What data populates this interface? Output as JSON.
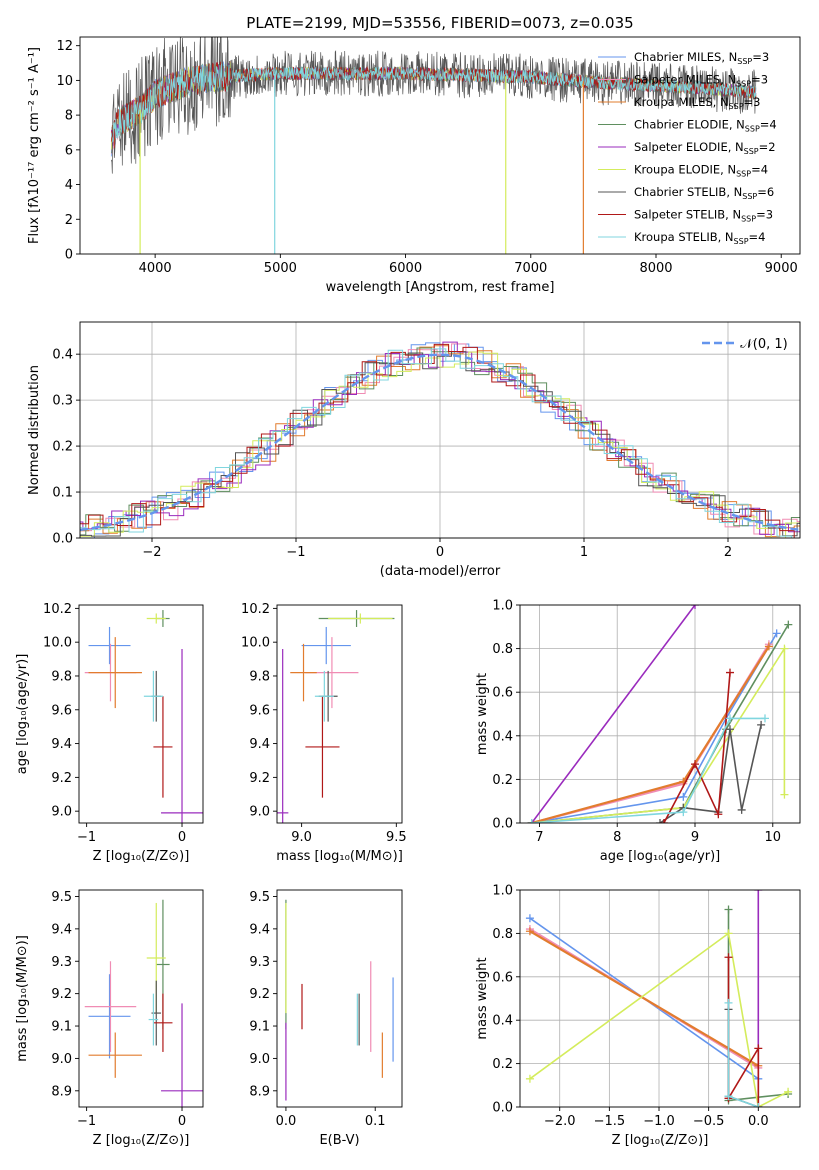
{
  "colors": {
    "c_miles": "#6495ed",
    "s_miles": "#f08cb4",
    "k_miles": "#e27c2e",
    "c_elodie": "#5f8f5f",
    "s_elodie": "#9a2bbd",
    "k_elodie": "#d4ec5c",
    "c_stelib": "#555555",
    "s_stelib": "#b01818",
    "k_stelib": "#80d6df"
  },
  "chart_data": [
    {
      "id": "spectrum",
      "type": "line",
      "title": "PLATE=2199, MJD=53556, FIBERID=0073, z=0.035",
      "xlabel": "wavelength [Angstrom, rest frame]",
      "ylabel": "Flux [fλ10⁻¹⁷ erg cm⁻² s⁻¹ A⁻¹]",
      "xlim": [
        3400,
        9150
      ],
      "ylim": [
        0,
        12.5
      ],
      "xticks": [
        4000,
        5000,
        6000,
        7000,
        8000,
        9000
      ],
      "yticks": [
        0,
        2,
        4,
        6,
        8,
        10,
        12
      ],
      "legend": "top-right",
      "series": [
        {
          "name": "Chabrier MILES, N",
          "sub": "SSP",
          "suffix": "=3",
          "color": "c_miles"
        },
        {
          "name": "Salpeter MILES, N",
          "sub": "SSP",
          "suffix": "=3",
          "color": "s_miles"
        },
        {
          "name": "Kroupa MILES, N",
          "sub": "SSP",
          "suffix": "=3",
          "color": "k_miles"
        },
        {
          "name": "Chabrier ELODIE, N",
          "sub": "SSP",
          "suffix": "=4",
          "color": "c_elodie"
        },
        {
          "name": "Salpeter ELODIE, N",
          "sub": "SSP",
          "suffix": "=2",
          "color": "s_elodie"
        },
        {
          "name": "Kroupa ELODIE, N",
          "sub": "SSP",
          "suffix": "=4",
          "color": "k_elodie"
        },
        {
          "name": "Chabrier STELIB, N",
          "sub": "SSP",
          "suffix": "=6",
          "color": "c_stelib"
        },
        {
          "name": "Salpeter STELIB, N",
          "sub": "SSP",
          "suffix": "=3",
          "color": "s_stelib"
        },
        {
          "name": "Kroupa STELIB, N",
          "sub": "SSP",
          "suffix": "=4",
          "color": "k_stelib"
        }
      ],
      "continuum": {
        "x": [
          3650,
          3700,
          3800,
          3900,
          4000,
          4100,
          4300,
          4500,
          5000,
          5500,
          6000,
          6500,
          7000,
          7500,
          8000,
          8500,
          8800
        ],
        "y": [
          6.5,
          7.5,
          8.0,
          8.4,
          9.2,
          9.5,
          10.0,
          10.2,
          10.4,
          10.4,
          10.4,
          10.3,
          10.2,
          9.9,
          9.7,
          9.5,
          9.3
        ]
      },
      "dips": [
        {
          "x": 3880,
          "y": 0,
          "color": "k_elodie"
        },
        {
          "x": 4955,
          "y": 0,
          "color": "k_stelib"
        },
        {
          "x": 6800,
          "y": 0,
          "color": "k_elodie"
        },
        {
          "x": 7420,
          "y": 0,
          "color": "k_miles"
        }
      ]
    },
    {
      "id": "residuals",
      "type": "histogram",
      "xlabel": "(data-model)/error",
      "ylabel": "Normed distribution",
      "xlim": [
        -2.5,
        2.5
      ],
      "ylim": [
        0,
        0.47
      ],
      "xticks": [
        -2,
        -1,
        0,
        1,
        2
      ],
      "yticks": [
        0.0,
        0.1,
        0.2,
        0.3,
        0.4
      ],
      "legend": "top-right",
      "legend_label": "𝒩(0, 1)",
      "gauss_color": "c_miles",
      "bin_width": 0.1
    },
    {
      "id": "age_vs_z",
      "type": "errorbar",
      "xlabel": "Z [log₁₀(Z/Z⊙)]",
      "ylabel": "age  [log₁₀(age/yr)]",
      "xlim": [
        -1.08,
        0.22
      ],
      "ylim": [
        8.93,
        10.22
      ],
      "xticks": [
        -1,
        0
      ],
      "yticks": [
        9.0,
        9.2,
        9.4,
        9.6,
        9.8,
        10.0,
        10.2
      ],
      "points": [
        {
          "x": -0.76,
          "y": 9.98,
          "xerr": 0.22,
          "yerr": 0.11,
          "color": "c_miles"
        },
        {
          "x": -0.75,
          "y": 9.82,
          "xerr": 0.27,
          "yerr": 0.17,
          "color": "s_miles"
        },
        {
          "x": -0.7,
          "y": 9.82,
          "xerr": 0.28,
          "yerr": 0.21,
          "color": "k_miles"
        },
        {
          "x": -0.2,
          "y": 10.14,
          "xerr": 0.07,
          "yerr": 0.05,
          "color": "c_elodie"
        },
        {
          "x": 0.0,
          "y": 8.99,
          "xerr": 0.22,
          "yerr": 0.97,
          "color": "s_elodie"
        },
        {
          "x": -0.27,
          "y": 10.14,
          "xerr": 0.1,
          "yerr": 0.03,
          "color": "k_elodie"
        },
        {
          "x": -0.27,
          "y": 9.68,
          "xerr": 0.05,
          "yerr": 0.15,
          "color": "c_stelib"
        },
        {
          "x": -0.2,
          "y": 9.38,
          "xerr": 0.1,
          "yerr": 0.3,
          "color": "s_stelib"
        },
        {
          "x": -0.3,
          "y": 9.68,
          "xerr": 0.1,
          "yerr": 0.15,
          "color": "k_stelib"
        }
      ]
    },
    {
      "id": "age_vs_mass",
      "type": "errorbar",
      "xlabel": "mass [log₁₀(M/M⊙)]",
      "ylabel": "",
      "xlim": [
        8.87,
        9.53
      ],
      "ylim": [
        8.93,
        10.22
      ],
      "xticks": [
        9.0,
        9.5
      ],
      "yticks": [
        9.0,
        9.2,
        9.4,
        9.6,
        9.8,
        10.0,
        10.2
      ],
      "points": [
        {
          "x": 9.13,
          "y": 9.98,
          "xerr": 0.13,
          "yerr": 0.11,
          "color": "c_miles"
        },
        {
          "x": 9.16,
          "y": 9.82,
          "xerr": 0.14,
          "yerr": 0.21,
          "color": "s_miles"
        },
        {
          "x": 9.01,
          "y": 9.82,
          "xerr": 0.07,
          "yerr": 0.17,
          "color": "k_miles"
        },
        {
          "x": 9.29,
          "y": 10.14,
          "xerr": 0.2,
          "yerr": 0.05,
          "color": "c_elodie"
        },
        {
          "x": 8.9,
          "y": 8.99,
          "xerr": 0.03,
          "yerr": 0.97,
          "color": "s_elodie"
        },
        {
          "x": 9.31,
          "y": 10.14,
          "xerr": 0.17,
          "yerr": 0.03,
          "color": "k_elodie"
        },
        {
          "x": 9.14,
          "y": 9.68,
          "xerr": 0.05,
          "yerr": 0.15,
          "color": "c_stelib"
        },
        {
          "x": 9.11,
          "y": 9.38,
          "xerr": 0.09,
          "yerr": 0.3,
          "color": "s_stelib"
        },
        {
          "x": 9.12,
          "y": 9.68,
          "xerr": 0.05,
          "yerr": 0.15,
          "color": "k_stelib"
        }
      ]
    },
    {
      "id": "weight_vs_age",
      "type": "line",
      "xlabel": "age  [log₁₀(age/yr)]",
      "ylabel": "mass weight",
      "xlim": [
        6.75,
        10.35
      ],
      "ylim": [
        0,
        1
      ],
      "xticks": [
        7,
        8,
        9,
        10
      ],
      "yticks": [
        0.0,
        0.2,
        0.4,
        0.6,
        0.8,
        1.0
      ],
      "series": [
        {
          "color": "c_miles",
          "x": [
            6.9,
            8.85,
            9.4,
            10.05
          ],
          "y": [
            0.0,
            0.12,
            0.48,
            0.87
          ]
        },
        {
          "color": "s_miles",
          "x": [
            6.9,
            8.85,
            9.95
          ],
          "y": [
            0.0,
            0.18,
            0.82
          ]
        },
        {
          "color": "k_miles",
          "x": [
            6.9,
            8.85,
            9.95
          ],
          "y": [
            0.0,
            0.19,
            0.81
          ]
        },
        {
          "color": "c_elodie",
          "x": [
            6.9,
            8.85,
            9.4,
            10.2
          ],
          "y": [
            0.0,
            0.07,
            0.43,
            0.91
          ]
        },
        {
          "color": "s_elodie",
          "x": [
            6.9,
            9.0
          ],
          "y": [
            0.0,
            1.0
          ]
        },
        {
          "color": "k_elodie",
          "x": [
            6.9,
            8.85,
            10.15,
            10.15
          ],
          "y": [
            0.0,
            0.07,
            0.8,
            0.13
          ]
        },
        {
          "color": "c_stelib",
          "x": [
            8.55,
            8.85,
            9.3,
            9.45,
            9.6,
            9.85
          ],
          "y": [
            0.0,
            0.07,
            0.05,
            0.43,
            0.06,
            0.45
          ]
        },
        {
          "color": "s_stelib",
          "x": [
            8.6,
            9.0,
            9.3,
            9.45
          ],
          "y": [
            0.0,
            0.27,
            0.04,
            0.69
          ]
        },
        {
          "color": "k_stelib",
          "x": [
            6.9,
            8.85,
            9.45,
            9.9
          ],
          "y": [
            0.0,
            0.05,
            0.48,
            0.48
          ]
        }
      ]
    },
    {
      "id": "mass_vs_z",
      "type": "errorbar",
      "xlabel": "Z [log₁₀(Z/Z⊙)]",
      "ylabel": "mass [log₁₀(M/M⊙)]",
      "xlim": [
        -1.08,
        0.22
      ],
      "ylim": [
        8.85,
        9.52
      ],
      "xticks": [
        -1,
        0
      ],
      "yticks": [
        8.9,
        9.0,
        9.1,
        9.2,
        9.3,
        9.4,
        9.5
      ],
      "points": [
        {
          "x": -0.76,
          "y": 9.13,
          "xerr": 0.22,
          "yerr": 0.13,
          "color": "c_miles"
        },
        {
          "x": -0.75,
          "y": 9.16,
          "xerr": 0.27,
          "yerr": 0.14,
          "color": "s_miles"
        },
        {
          "x": -0.7,
          "y": 9.01,
          "xerr": 0.28,
          "yerr": 0.07,
          "color": "k_miles"
        },
        {
          "x": -0.2,
          "y": 9.29,
          "xerr": 0.07,
          "yerr": 0.2,
          "color": "c_elodie"
        },
        {
          "x": 0.0,
          "y": 8.9,
          "xerr": 0.22,
          "yerr": 0.27,
          "color": "s_elodie"
        },
        {
          "x": -0.27,
          "y": 9.31,
          "xerr": 0.1,
          "yerr": 0.17,
          "color": "k_elodie"
        },
        {
          "x": -0.27,
          "y": 9.14,
          "xerr": 0.05,
          "yerr": 0.1,
          "color": "c_stelib"
        },
        {
          "x": -0.2,
          "y": 9.11,
          "xerr": 0.1,
          "yerr": 0.09,
          "color": "s_stelib"
        },
        {
          "x": -0.3,
          "y": 9.12,
          "xerr": 0.05,
          "yerr": 0.08,
          "color": "k_stelib"
        }
      ]
    },
    {
      "id": "mass_vs_ebv",
      "type": "errorbar",
      "xlabel": "E(B-V)",
      "ylabel": "",
      "xlim": [
        -0.01,
        0.13
      ],
      "ylim": [
        8.85,
        9.52
      ],
      "xticks": [
        0.0,
        0.1
      ],
      "yticks": [
        8.9,
        9.0,
        9.1,
        9.2,
        9.3,
        9.4,
        9.5
      ],
      "points": [
        {
          "x": 0.12,
          "y": 9.12,
          "xerr": 0,
          "yerr": 0.13,
          "color": "c_miles"
        },
        {
          "x": 0.095,
          "y": 9.16,
          "xerr": 0,
          "yerr": 0.14,
          "color": "s_miles"
        },
        {
          "x": 0.108,
          "y": 9.01,
          "xerr": 0,
          "yerr": 0.07,
          "color": "k_miles"
        },
        {
          "x": 0.0,
          "y": 9.29,
          "xerr": 0,
          "yerr": 0.2,
          "color": "c_elodie"
        },
        {
          "x": 0.0,
          "y": 8.99,
          "xerr": 0,
          "yerr": 0.12,
          "color": "s_elodie"
        },
        {
          "x": 0.0,
          "y": 9.31,
          "xerr": 0,
          "yerr": 0.17,
          "color": "k_elodie"
        },
        {
          "x": 0.082,
          "y": 9.12,
          "xerr": 0,
          "yerr": 0.08,
          "color": "c_stelib"
        },
        {
          "x": 0.018,
          "y": 9.16,
          "xerr": 0,
          "yerr": 0.07,
          "color": "s_stelib"
        },
        {
          "x": 0.08,
          "y": 9.12,
          "xerr": 0,
          "yerr": 0.08,
          "color": "k_stelib"
        }
      ]
    },
    {
      "id": "weight_vs_z",
      "type": "line",
      "xlabel": "Z [log₁₀(Z/Z⊙)]",
      "ylabel": "mass weight",
      "xlim": [
        -2.4,
        0.42
      ],
      "ylim": [
        0,
        1
      ],
      "xticks": [
        -2.0,
        -1.5,
        -1.0,
        -0.5,
        0.0
      ],
      "yticks": [
        0.0,
        0.2,
        0.4,
        0.6,
        0.8,
        1.0
      ],
      "series": [
        {
          "color": "c_miles",
          "x": [
            -2.3,
            0.0
          ],
          "y": [
            0.87,
            0.13
          ]
        },
        {
          "color": "s_miles",
          "x": [
            -2.3,
            0.0
          ],
          "y": [
            0.82,
            0.18
          ]
        },
        {
          "color": "k_miles",
          "x": [
            -2.3,
            0.0
          ],
          "y": [
            0.81,
            0.19
          ]
        },
        {
          "color": "c_elodie",
          "x": [
            -0.3,
            -0.3,
            0.3
          ],
          "y": [
            0.91,
            0.03,
            0.06
          ]
        },
        {
          "color": "s_elodie",
          "x": [
            0.0,
            0.0
          ],
          "y": [
            0.0,
            1.0
          ]
        },
        {
          "color": "k_elodie",
          "x": [
            -2.3,
            -0.3,
            0.0,
            0.3
          ],
          "y": [
            0.13,
            0.8,
            0.0,
            0.07
          ]
        },
        {
          "color": "c_stelib",
          "x": [
            -0.3,
            -0.3,
            0.0
          ],
          "y": [
            0.45,
            0.05,
            0.0
          ]
        },
        {
          "color": "s_stelib",
          "x": [
            -0.3,
            -0.3,
            0.0,
            0.0
          ],
          "y": [
            0.69,
            0.04,
            0.27,
            0.0
          ]
        },
        {
          "color": "k_stelib",
          "x": [
            -0.3,
            -0.3,
            0.0
          ],
          "y": [
            0.48,
            0.05,
            0.0
          ]
        }
      ]
    }
  ]
}
